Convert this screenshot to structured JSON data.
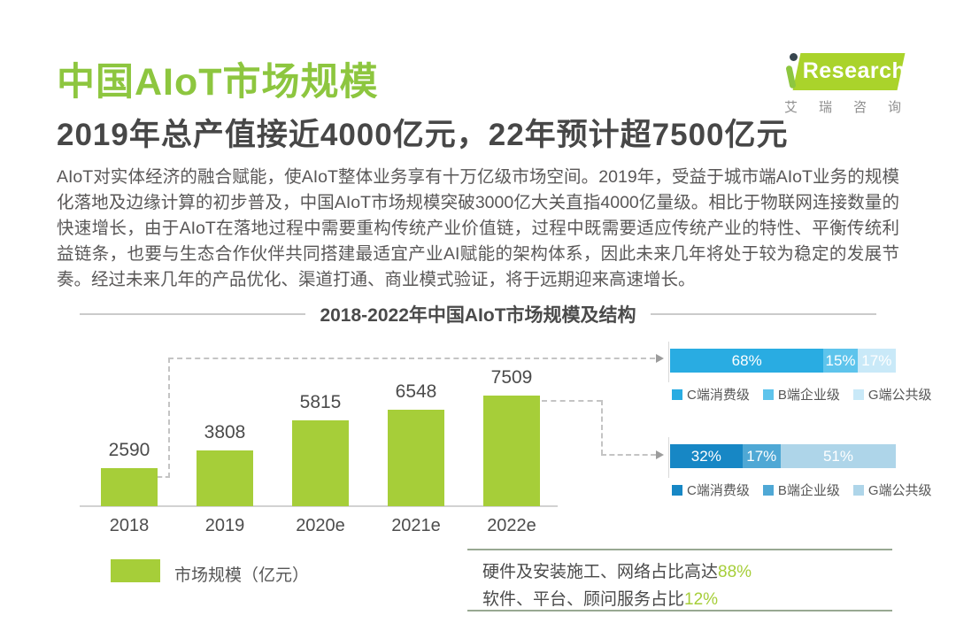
{
  "header": {
    "title": "中国AIoT市场规模",
    "subtitle": "2019年总产值接近4000亿元，22年预计超7500亿元",
    "logo": {
      "brand": "Research",
      "brand_cn": "艾瑞咨询"
    }
  },
  "intro": {
    "text": "AIoT对实体经济的融合赋能，使AIoT整体业务享有十万亿级市场空间。2019年，受益于城市端AIoT业务的规模化落地及边缘计算的初步普及，中国AIoT市场规模突破3000亿大关直指4000亿量级。相比于物联网连接数量的快速增长，由于AIoT在落地过程中需要重构传统产业价值链，过程中既需要适应传统产业的特性、平衡传统利益链条，也要与生态合作伙伴共同搭建最适宜产业AI赋能的架构体系，因此未来几年将处于较为稳定的发展节奏。经过未来几年的产品优化、渠道打通、商业模式验证，将于远期迎来高速增长。"
  },
  "chart_data": {
    "type": "bar",
    "title": "2018-2022年中国AIoT市场规模及结构",
    "categories": [
      "2018",
      "2019",
      "2020e",
      "2021e",
      "2022e"
    ],
    "values": [
      2590,
      3808,
      5815,
      6548,
      7509
    ],
    "ylim": [
      0,
      7509
    ],
    "legend_label": "市场规模（亿元）",
    "bar_color": "#a6ce39",
    "grid": false,
    "structure_bars": [
      {
        "linked_category": "2018",
        "segments": [
          {
            "label": "C端消费级",
            "value": 68,
            "text": "68%",
            "color": "#29ace2"
          },
          {
            "label": "B端企业级",
            "value": 15,
            "text": "15%",
            "color": "#5ec4ec"
          },
          {
            "label": "G端公共级",
            "value": 17,
            "text": "17%",
            "color": "#c9e9f8"
          }
        ]
      },
      {
        "linked_category": "2022e",
        "segments": [
          {
            "label": "C端消费级",
            "value": 32,
            "text": "32%",
            "color": "#1787c5"
          },
          {
            "label": "B端企业级",
            "value": 17,
            "text": "17%",
            "color": "#4fa8d5"
          },
          {
            "label": "G端公共级",
            "value": 51,
            "text": "51%",
            "color": "#aed5e9"
          }
        ]
      }
    ]
  },
  "notes": [
    {
      "text": "硬件及安装施工、网络占比高达",
      "highlight": "88%"
    },
    {
      "text": "软件、平台、顾问服务占比",
      "highlight": "12%"
    }
  ],
  "colors": {
    "accent_green": "#8dc63f",
    "bar_green": "#a6ce39",
    "logo_green": "#aad32b",
    "text_dark": "#474747",
    "text_body": "#595757"
  }
}
